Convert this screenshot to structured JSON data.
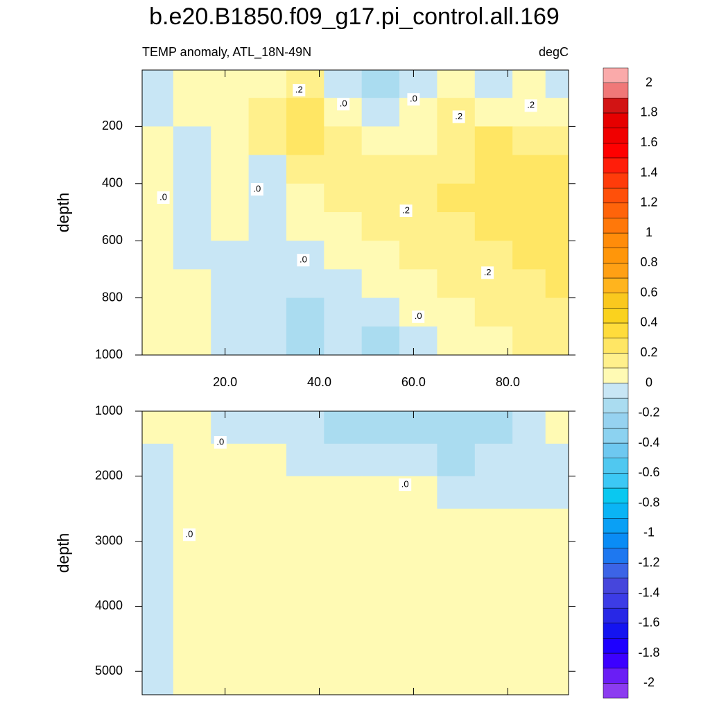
{
  "chart_data": [
    {
      "type": "contour",
      "title": "b.e20.B1850.f09_g17.pi_control.all.169",
      "subtitle": "TEMP anomaly, ATL_18N-49N",
      "units": "degC",
      "ylabel": "depth",
      "xlim": [
        2.4,
        92.9
      ],
      "ylim": [
        2.5,
        1000
      ],
      "xticks": [
        {
          "value": 20,
          "label": "20.0"
        },
        {
          "value": 40,
          "label": "40.0"
        },
        {
          "value": 60,
          "label": "60.0"
        },
        {
          "value": 80,
          "label": "80.0"
        }
      ],
      "yticks": [
        200,
        400,
        600,
        800,
        1000
      ],
      "x": [
        5,
        13,
        21,
        29,
        37,
        45,
        53,
        61,
        69,
        77,
        85,
        91
      ],
      "depth": [
        50,
        150,
        250,
        350,
        450,
        550,
        650,
        750,
        850,
        950
      ],
      "z": [
        [
          -0.1,
          0.05,
          0.05,
          0.05,
          0.1,
          -0.1,
          -0.2,
          -0.1,
          0.05,
          -0.1,
          0.05,
          -0.1
        ],
        [
          -0.1,
          0.05,
          0.05,
          0.15,
          0.25,
          0.05,
          -0.1,
          0.05,
          0.1,
          0.05,
          0.05,
          0.05
        ],
        [
          0.05,
          -0.05,
          0.05,
          0.1,
          0.2,
          0.1,
          0.05,
          0.05,
          0.15,
          0.2,
          0.15,
          0.15
        ],
        [
          0.05,
          -0.05,
          0.05,
          -0.05,
          0.1,
          0.1,
          0.1,
          0.15,
          0.15,
          0.25,
          0.2,
          0.2
        ],
        [
          0.05,
          -0.05,
          0.05,
          -0.05,
          0.05,
          0.1,
          0.1,
          0.15,
          0.2,
          0.25,
          0.25,
          0.25
        ],
        [
          0.05,
          -0.05,
          0.05,
          -0.05,
          0.05,
          0.05,
          0.1,
          0.15,
          0.15,
          0.2,
          0.25,
          0.25
        ],
        [
          0.05,
          -0.05,
          -0.05,
          -0.05,
          -0.05,
          0.05,
          0.05,
          0.1,
          0.15,
          0.15,
          0.2,
          0.25
        ],
        [
          0.05,
          0.05,
          -0.05,
          -0.05,
          -0.05,
          -0.05,
          0.05,
          0.05,
          0.1,
          0.15,
          0.15,
          0.2
        ],
        [
          0.05,
          0.05,
          -0.05,
          -0.05,
          -0.15,
          -0.05,
          -0.05,
          0.05,
          0.05,
          0.1,
          0.1,
          0.15
        ],
        [
          0.05,
          0.05,
          -0.05,
          -0.05,
          -0.15,
          -0.05,
          -0.15,
          -0.05,
          0.05,
          0.05,
          0.1,
          0.1
        ]
      ],
      "contour_labels": [
        {
          "text": ".2",
          "x": 35.7,
          "depth": 73
        },
        {
          "text": ".0",
          "x": 45.1,
          "depth": 122
        },
        {
          "text": ".0",
          "x": 60,
          "depth": 105
        },
        {
          "text": ".2",
          "x": 69.6,
          "depth": 166
        },
        {
          "text": ".2",
          "x": 84.9,
          "depth": 127
        },
        {
          "text": ".0",
          "x": 6.9,
          "depth": 449
        },
        {
          "text": ".0",
          "x": 26.8,
          "depth": 420
        },
        {
          "text": ".2",
          "x": 58.4,
          "depth": 495
        },
        {
          "text": ".0",
          "x": 36.6,
          "depth": 668
        },
        {
          "text": ".2",
          "x": 75.7,
          "depth": 712
        },
        {
          "text": ".0",
          "x": 61,
          "depth": 866
        }
      ]
    },
    {
      "type": "contour",
      "ylabel": "depth",
      "xlim": [
        2.4,
        92.9
      ],
      "ylim": [
        1000,
        5360
      ],
      "xticks": [
        20,
        40,
        60,
        80
      ],
      "yticks": [
        1000,
        2000,
        3000,
        4000,
        5000
      ],
      "x": [
        5,
        13,
        21,
        29,
        37,
        45,
        53,
        61,
        69,
        77,
        85,
        91
      ],
      "depth": [
        1250,
        1750,
        2250,
        2750,
        3250,
        3750,
        4250,
        4750,
        5200
      ],
      "z": [
        [
          0.05,
          0.05,
          -0.05,
          -0.05,
          -0.05,
          -0.15,
          -0.15,
          -0.15,
          -0.15,
          -0.15,
          -0.05,
          0.05
        ],
        [
          -0.05,
          0.05,
          0.05,
          0.05,
          -0.05,
          -0.05,
          -0.05,
          -0.05,
          -0.15,
          -0.05,
          -0.05,
          -0.05
        ],
        [
          -0.05,
          0.05,
          0.05,
          0.05,
          0.05,
          0.05,
          0.05,
          0.05,
          -0.05,
          -0.05,
          -0.05,
          -0.05
        ],
        [
          -0.05,
          0.05,
          0.05,
          0.05,
          0.05,
          0.05,
          0.05,
          0.05,
          0.05,
          0.05,
          0.05,
          0.05
        ],
        [
          -0.05,
          0.05,
          0.05,
          0.05,
          0.05,
          0.05,
          0.05,
          0.05,
          0.05,
          0.05,
          0.05,
          0.05
        ],
        [
          -0.05,
          0.05,
          0.05,
          0.05,
          0.05,
          0.05,
          0.05,
          0.05,
          0.05,
          0.05,
          0.05,
          0.05
        ],
        [
          -0.05,
          0.05,
          0.05,
          0.05,
          0.05,
          0.05,
          0.05,
          0.05,
          0.05,
          0.05,
          0.05,
          0.05
        ],
        [
          -0.05,
          0.05,
          0.05,
          0.05,
          0.05,
          0.05,
          0.05,
          0.05,
          0.05,
          0.05,
          0.05,
          0.05
        ],
        [
          -0.05,
          0.05,
          0.05,
          0.05,
          0.05,
          0.05,
          0.05,
          0.05,
          0.05,
          0.05,
          0.05,
          0.05
        ]
      ],
      "contour_labels": [
        {
          "text": ".0",
          "x": 19,
          "depth": 1480
        },
        {
          "text": ".0",
          "x": 58.2,
          "depth": 2131
        },
        {
          "text": ".0",
          "x": 12.4,
          "depth": 2900
        }
      ]
    }
  ],
  "colorbar": {
    "range": [
      -2.1,
      2.1
    ],
    "ticks": [
      2,
      1.8,
      1.6,
      1.4,
      1.2,
      1,
      0.8,
      0.6,
      0.4,
      0.2,
      0,
      -0.2,
      -0.4,
      -0.6,
      -0.8,
      -1,
      -1.2,
      -1.4,
      -1.6,
      -1.8,
      -2
    ],
    "colors": [
      "#8c3cf0",
      "#6a1ef5",
      "#3c00ff",
      "#1e00ff",
      "#1414f0",
      "#2828e6",
      "#3c3ce6",
      "#4646dc",
      "#3c64e6",
      "#1e78f0",
      "#0a8cf5",
      "#0aa0f5",
      "#0ab4f5",
      "#0ac8f0",
      "#3cc8f5",
      "#50c8f0",
      "#6ec8f0",
      "#8cd2f0",
      "#96d2f0",
      "#aadcf0",
      "#c8e6f5",
      "#fffab4",
      "#fff08c",
      "#ffe664",
      "#ffdc3c",
      "#fad21e",
      "#fac81e",
      "#ffb41e",
      "#ffa014",
      "#ff960a",
      "#ff8c0a",
      "#ff780a",
      "#ff640a",
      "#ff500a",
      "#ff3c0a",
      "#ff1e0a",
      "#ff0000",
      "#f00000",
      "#e60000",
      "#d21414",
      "#f07878",
      "#faaaaa"
    ]
  }
}
